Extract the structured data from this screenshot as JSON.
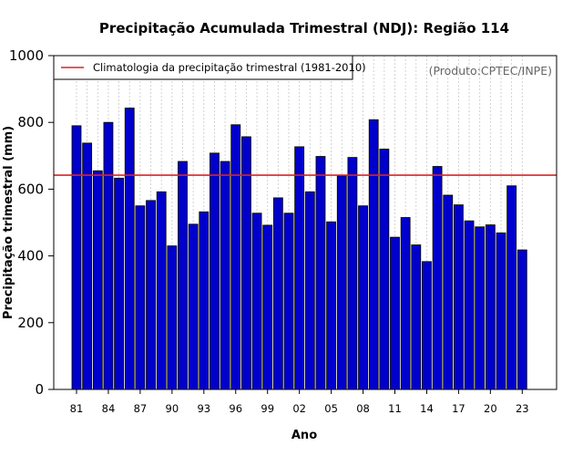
{
  "chart_data": {
    "type": "bar",
    "title": "Precipitação Acumulada Trimestral (NDJ): Região 114",
    "xlabel": "Ano",
    "ylabel": "Precipitação trimestral (mm)",
    "ylim": [
      0,
      1000
    ],
    "yticks": [
      0,
      200,
      400,
      600,
      800,
      1000
    ],
    "categories": [
      "81",
      "82",
      "83",
      "84",
      "85",
      "86",
      "87",
      "88",
      "89",
      "90",
      "91",
      "92",
      "93",
      "94",
      "95",
      "96",
      "97",
      "98",
      "99",
      "00",
      "01",
      "02",
      "03",
      "04",
      "05",
      "06",
      "07",
      "08",
      "09",
      "10",
      "11",
      "12",
      "13",
      "14",
      "15",
      "16",
      "17",
      "18",
      "19",
      "20",
      "21",
      "22",
      "23"
    ],
    "xtick_labels": [
      "81",
      "84",
      "87",
      "90",
      "93",
      "96",
      "99",
      "02",
      "05",
      "08",
      "11",
      "14",
      "17",
      "20",
      "23"
    ],
    "values": [
      790,
      738,
      655,
      800,
      633,
      843,
      550,
      566,
      592,
      430,
      683,
      495,
      532,
      708,
      683,
      793,
      757,
      528,
      492,
      574,
      528,
      727,
      592,
      698,
      502,
      640,
      695,
      550,
      808,
      720,
      456,
      515,
      433,
      383,
      668,
      582,
      553,
      505,
      487,
      493,
      469,
      610,
      418
    ],
    "bar_color": "#0000cc",
    "climatology": {
      "value": 642,
      "color": "#dd2222",
      "label": "Climatologia da precipitação trimestral (1981-2010)"
    },
    "annotation": "(Produto:CPTEC/INPE)",
    "legend_position": "top-left",
    "grid": "vertical-dotted"
  }
}
